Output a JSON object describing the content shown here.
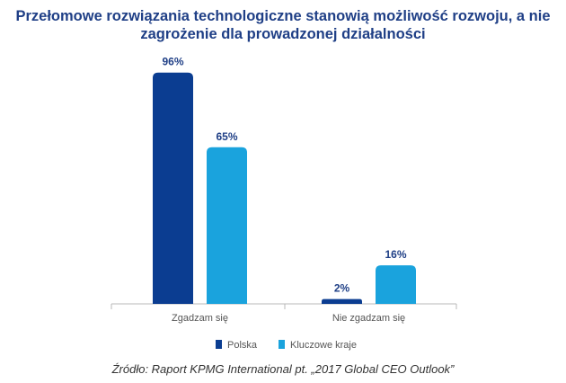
{
  "colors": {
    "polska": "#0b3d91",
    "kluczowe": "#1aa3dd",
    "axis": "#b8b8b8",
    "label": "#555555",
    "title": "#1f3f86"
  },
  "chart_data": {
    "type": "bar",
    "title": [
      "Przełomowe rozwiązania technologiczne stanowią możliwość rozwoju, a nie",
      "zagrożenie dla prowadzonej działalności"
    ],
    "categories": [
      "Zgadzam się",
      "Nie zgadzam się"
    ],
    "series": [
      {
        "name": "Polska",
        "values": [
          96,
          2
        ],
        "labels": [
          "96%",
          "2%"
        ],
        "color": "#0b3d91"
      },
      {
        "name": "Kluczowe kraje",
        "values": [
          65,
          16
        ],
        "labels": [
          "65%",
          "16%"
        ],
        "color": "#1aa3dd"
      }
    ],
    "ylim": [
      0,
      100
    ],
    "xlabel": "",
    "ylabel": "",
    "grid": false,
    "legend_position": "bottom"
  },
  "source": "Źródło: Raport KPMG International pt. „2017 Global CEO Outlook”"
}
